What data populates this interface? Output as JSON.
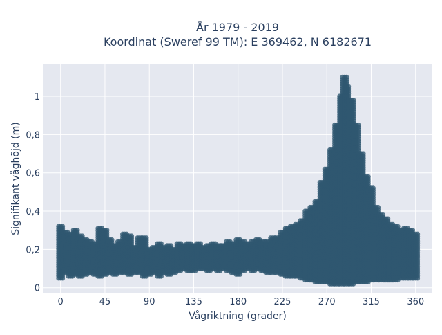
{
  "chart_data": {
    "type": "scatter",
    "title": "År 1979 - 2019",
    "subtitle": "Koordinat (Sweref 99 TM): E 369462, N 6182671",
    "xlabel": "Vågriktning (grader)",
    "ylabel": "Signifikant våghöjd (m)",
    "xlim": [
      -18,
      377
    ],
    "ylim": [
      -0.03,
      1.17
    ],
    "x_ticks": [
      0,
      45,
      90,
      135,
      180,
      225,
      270,
      315,
      360
    ],
    "x_tick_labels": [
      "0",
      "45",
      "90",
      "135",
      "180",
      "225",
      "270",
      "315",
      "360"
    ],
    "y_ticks": [
      0,
      0.2,
      0.4,
      0.6,
      0.8,
      1
    ],
    "y_tick_labels": [
      "0",
      "0,2",
      "0,4",
      "0,6",
      "0,8",
      "1"
    ],
    "grid": true,
    "marker_color": "#2f5870",
    "background_color": "#e5e8f0",
    "series": [
      {
        "points_sampled": [
          [
            0,
            0.05
          ],
          [
            0,
            0.15
          ],
          [
            0,
            0.25
          ],
          [
            0,
            0.32
          ],
          [
            5,
            0.08
          ],
          [
            5,
            0.2
          ],
          [
            5,
            0.29
          ],
          [
            10,
            0.06
          ],
          [
            10,
            0.18
          ],
          [
            10,
            0.28
          ],
          [
            15,
            0.07
          ],
          [
            15,
            0.16
          ],
          [
            15,
            0.3
          ],
          [
            20,
            0.06
          ],
          [
            20,
            0.14
          ],
          [
            20,
            0.27
          ],
          [
            25,
            0.07
          ],
          [
            25,
            0.2
          ],
          [
            25,
            0.25
          ],
          [
            30,
            0.08
          ],
          [
            30,
            0.13
          ],
          [
            30,
            0.24
          ],
          [
            35,
            0.07
          ],
          [
            35,
            0.18
          ],
          [
            35,
            0.23
          ],
          [
            40,
            0.06
          ],
          [
            40,
            0.15
          ],
          [
            40,
            0.31
          ],
          [
            45,
            0.07
          ],
          [
            45,
            0.14
          ],
          [
            45,
            0.3
          ],
          [
            50,
            0.08
          ],
          [
            50,
            0.17
          ],
          [
            50,
            0.25
          ],
          [
            55,
            0.07
          ],
          [
            55,
            0.12
          ],
          [
            55,
            0.22
          ],
          [
            60,
            0.08
          ],
          [
            60,
            0.16
          ],
          [
            60,
            0.24
          ],
          [
            65,
            0.08
          ],
          [
            65,
            0.13
          ],
          [
            65,
            0.28
          ],
          [
            70,
            0.07
          ],
          [
            70,
            0.15
          ],
          [
            70,
            0.27
          ],
          [
            75,
            0.08
          ],
          [
            75,
            0.14
          ],
          [
            75,
            0.21
          ],
          [
            80,
            0.08
          ],
          [
            80,
            0.13
          ],
          [
            80,
            0.26
          ],
          [
            85,
            0.06
          ],
          [
            85,
            0.15
          ],
          [
            85,
            0.26
          ],
          [
            90,
            0.07
          ],
          [
            90,
            0.14
          ],
          [
            90,
            0.2
          ],
          [
            95,
            0.08
          ],
          [
            95,
            0.13
          ],
          [
            95,
            0.21
          ],
          [
            100,
            0.06
          ],
          [
            100,
            0.12
          ],
          [
            100,
            0.23
          ],
          [
            105,
            0.08
          ],
          [
            105,
            0.14
          ],
          [
            105,
            0.21
          ],
          [
            110,
            0.07
          ],
          [
            110,
            0.13
          ],
          [
            110,
            0.22
          ],
          [
            115,
            0.08
          ],
          [
            115,
            0.13
          ],
          [
            115,
            0.2
          ],
          [
            120,
            0.09
          ],
          [
            120,
            0.14
          ],
          [
            120,
            0.23
          ],
          [
            125,
            0.1
          ],
          [
            125,
            0.15
          ],
          [
            125,
            0.22
          ],
          [
            130,
            0.09
          ],
          [
            130,
            0.14
          ],
          [
            130,
            0.23
          ],
          [
            135,
            0.09
          ],
          [
            135,
            0.15
          ],
          [
            135,
            0.22
          ],
          [
            140,
            0.1
          ],
          [
            140,
            0.16
          ],
          [
            140,
            0.23
          ],
          [
            145,
            0.1
          ],
          [
            145,
            0.15
          ],
          [
            145,
            0.21
          ],
          [
            150,
            0.09
          ],
          [
            150,
            0.16
          ],
          [
            150,
            0.22
          ],
          [
            155,
            0.1
          ],
          [
            155,
            0.15
          ],
          [
            155,
            0.23
          ],
          [
            160,
            0.09
          ],
          [
            160,
            0.16
          ],
          [
            160,
            0.22
          ],
          [
            165,
            0.1
          ],
          [
            165,
            0.17
          ],
          [
            165,
            0.22
          ],
          [
            170,
            0.09
          ],
          [
            170,
            0.16
          ],
          [
            170,
            0.24
          ],
          [
            175,
            0.08
          ],
          [
            175,
            0.17
          ],
          [
            175,
            0.23
          ],
          [
            180,
            0.07
          ],
          [
            180,
            0.17
          ],
          [
            180,
            0.25
          ],
          [
            185,
            0.09
          ],
          [
            185,
            0.18
          ],
          [
            185,
            0.24
          ],
          [
            190,
            0.1
          ],
          [
            190,
            0.17
          ],
          [
            190,
            0.23
          ],
          [
            195,
            0.09
          ],
          [
            195,
            0.18
          ],
          [
            195,
            0.24
          ],
          [
            200,
            0.1
          ],
          [
            200,
            0.17
          ],
          [
            200,
            0.25
          ],
          [
            205,
            0.09
          ],
          [
            205,
            0.18
          ],
          [
            205,
            0.24
          ],
          [
            210,
            0.08
          ],
          [
            210,
            0.17
          ],
          [
            210,
            0.24
          ],
          [
            215,
            0.08
          ],
          [
            215,
            0.18
          ],
          [
            215,
            0.26
          ],
          [
            220,
            0.08
          ],
          [
            220,
            0.17
          ],
          [
            220,
            0.26
          ],
          [
            225,
            0.07
          ],
          [
            225,
            0.18
          ],
          [
            225,
            0.29
          ],
          [
            230,
            0.06
          ],
          [
            230,
            0.17
          ],
          [
            230,
            0.31
          ],
          [
            235,
            0.06
          ],
          [
            235,
            0.18
          ],
          [
            235,
            0.32
          ],
          [
            240,
            0.06
          ],
          [
            240,
            0.2
          ],
          [
            240,
            0.33
          ],
          [
            245,
            0.05
          ],
          [
            245,
            0.2
          ],
          [
            245,
            0.35
          ],
          [
            250,
            0.04
          ],
          [
            250,
            0.22
          ],
          [
            250,
            0.4
          ],
          [
            255,
            0.04
          ],
          [
            255,
            0.23
          ],
          [
            255,
            0.42
          ],
          [
            260,
            0.03
          ],
          [
            260,
            0.25
          ],
          [
            260,
            0.45
          ],
          [
            265,
            0.03
          ],
          [
            265,
            0.3
          ],
          [
            265,
            0.55
          ],
          [
            270,
            0.03
          ],
          [
            270,
            0.32
          ],
          [
            270,
            0.62
          ],
          [
            275,
            0.02
          ],
          [
            275,
            0.35
          ],
          [
            275,
            0.72
          ],
          [
            280,
            0.02
          ],
          [
            280,
            0.38
          ],
          [
            280,
            0.85
          ],
          [
            285,
            0.02
          ],
          [
            285,
            0.42
          ],
          [
            285,
            1.0
          ],
          [
            288,
            0.03
          ],
          [
            288,
            0.5
          ],
          [
            288,
            1.1
          ],
          [
            290,
            0.02
          ],
          [
            290,
            0.45
          ],
          [
            290,
            1.05
          ],
          [
            295,
            0.02
          ],
          [
            295,
            0.4
          ],
          [
            295,
            0.98
          ],
          [
            300,
            0.03
          ],
          [
            300,
            0.35
          ],
          [
            300,
            0.85
          ],
          [
            305,
            0.03
          ],
          [
            305,
            0.32
          ],
          [
            305,
            0.7
          ],
          [
            310,
            0.03
          ],
          [
            310,
            0.28
          ],
          [
            310,
            0.58
          ],
          [
            315,
            0.04
          ],
          [
            315,
            0.25
          ],
          [
            315,
            0.52
          ],
          [
            320,
            0.04
          ],
          [
            320,
            0.22
          ],
          [
            320,
            0.42
          ],
          [
            325,
            0.04
          ],
          [
            325,
            0.2
          ],
          [
            325,
            0.38
          ],
          [
            330,
            0.04
          ],
          [
            330,
            0.2
          ],
          [
            330,
            0.36
          ],
          [
            335,
            0.04
          ],
          [
            335,
            0.18
          ],
          [
            335,
            0.33
          ],
          [
            340,
            0.04
          ],
          [
            340,
            0.18
          ],
          [
            340,
            0.32
          ],
          [
            345,
            0.05
          ],
          [
            345,
            0.17
          ],
          [
            345,
            0.3
          ],
          [
            350,
            0.05
          ],
          [
            350,
            0.16
          ],
          [
            350,
            0.31
          ],
          [
            355,
            0.05
          ],
          [
            355,
            0.16
          ],
          [
            355,
            0.3
          ],
          [
            360,
            0.05
          ],
          [
            360,
            0.15
          ],
          [
            360,
            0.28
          ]
        ]
      }
    ]
  }
}
